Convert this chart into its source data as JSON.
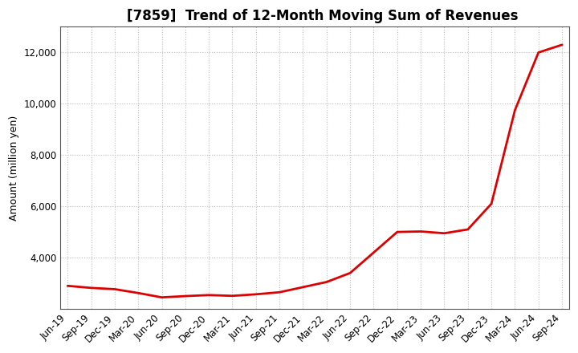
{
  "title": "[7859]  Trend of 12-Month Moving Sum of Revenues",
  "ylabel": "Amount (million yen)",
  "line_color": "#dd0000",
  "background_color": "#ffffff",
  "plot_bg_color": "#ffffff",
  "grid_color": "#bbbbbb",
  "x_labels": [
    "Jun-19",
    "Sep-19",
    "Dec-19",
    "Mar-20",
    "Jun-20",
    "Sep-20",
    "Dec-20",
    "Mar-21",
    "Jun-21",
    "Sep-21",
    "Dec-21",
    "Mar-22",
    "Jun-22",
    "Sep-22",
    "Dec-22",
    "Mar-23",
    "Jun-23",
    "Sep-23",
    "Dec-23",
    "Mar-24",
    "Jun-24",
    "Sep-24"
  ],
  "values": [
    2900,
    2820,
    2770,
    2620,
    2450,
    2500,
    2540,
    2510,
    2570,
    2650,
    2850,
    3050,
    3400,
    4200,
    5000,
    5020,
    4950,
    5100,
    6100,
    9750,
    12000,
    12300
  ],
  "ylim_min": 2000,
  "ylim_max": 13000,
  "yticks": [
    4000,
    6000,
    8000,
    10000,
    12000
  ],
  "title_fontsize": 12,
  "ylabel_fontsize": 9,
  "tick_fontsize": 8.5
}
